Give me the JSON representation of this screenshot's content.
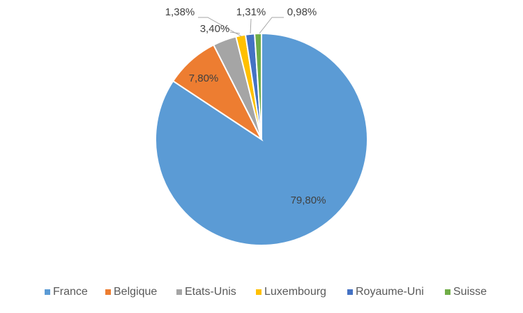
{
  "chart_data": {
    "type": "pie",
    "categories": [
      "France",
      "Belgique",
      "Etats-Unis",
      "Luxembourg",
      "Royaume-Uni",
      "Suisse"
    ],
    "values": [
      79.8,
      7.8,
      3.4,
      1.38,
      1.31,
      0.98
    ],
    "data_labels": [
      "79,80%",
      "7,80%",
      "3,40%",
      "1,38%",
      "1,31%",
      "0,98%"
    ],
    "colors": [
      "#5B9BD5",
      "#ED7D31",
      "#A5A5A5",
      "#FFC000",
      "#4472C4",
      "#70AD47"
    ],
    "legend_position": "bottom",
    "title": ""
  }
}
